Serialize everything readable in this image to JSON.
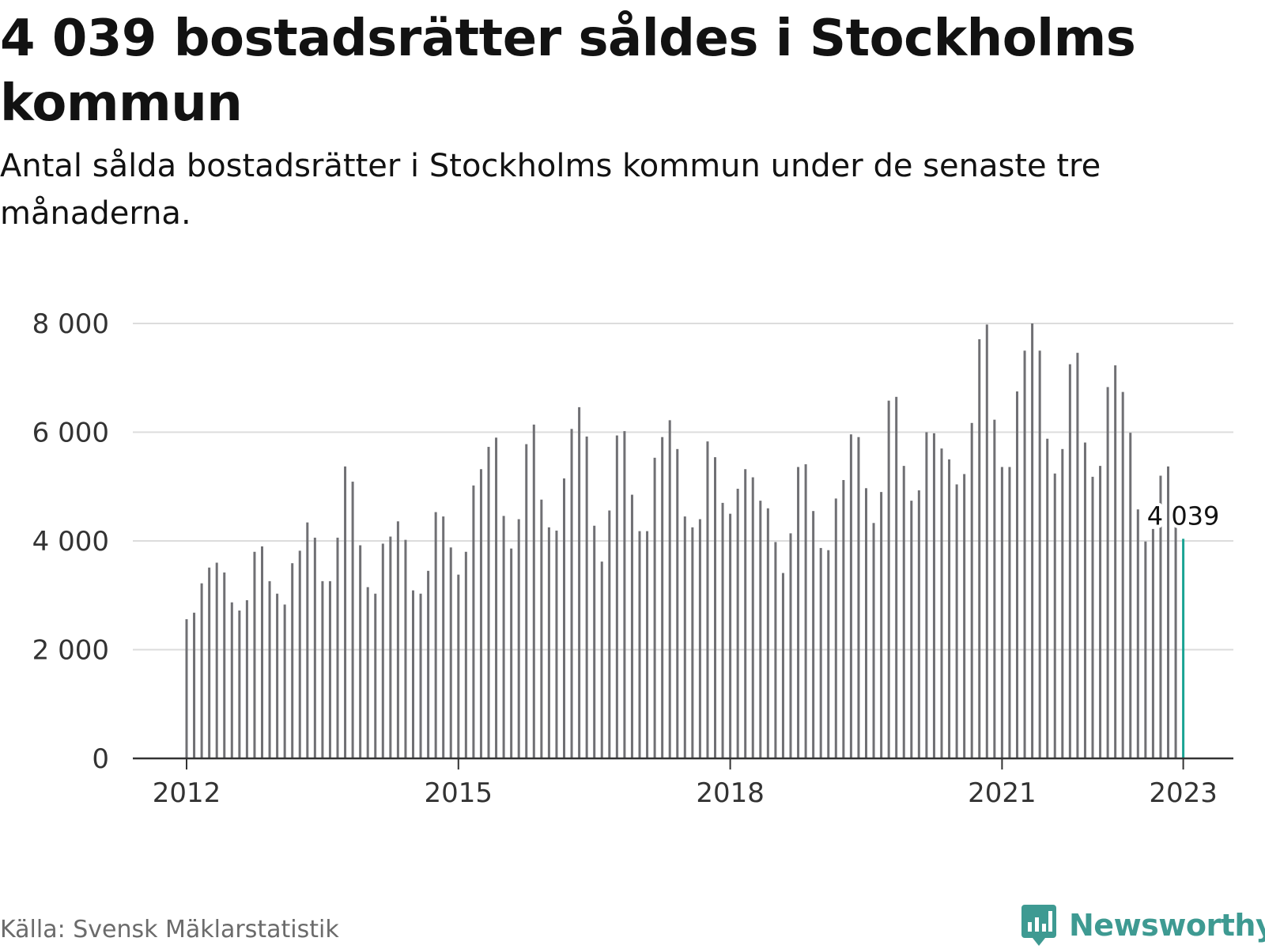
{
  "header": {
    "title": "4 039 bostadsrätter såldes i Stockholms kommun",
    "subtitle": "Antal sålda bostadsrätter i Stockholms kommun under de senaste tre månaderna."
  },
  "footer": {
    "source": "Källa: Svensk Mäklarstatistik",
    "brand": "Newsworthy"
  },
  "colors": {
    "bar": "#707074",
    "highlight": "#1aa393",
    "grid": "#dcdcdc",
    "axis": "#333333",
    "brand": "#3e9a92"
  },
  "chart_data": {
    "type": "bar",
    "title": "4 039 bostadsrätter såldes i Stockholms kommun",
    "subtitle": "Antal sålda bostadsrätter i Stockholms kommun under de senaste tre månaderna.",
    "xlabel": "",
    "ylabel": "",
    "ylim": [
      0,
      8000
    ],
    "yticks": [
      0,
      2000,
      4000,
      6000,
      8000
    ],
    "ytick_labels": [
      "0",
      "2 000",
      "4 000",
      "6 000",
      "8 000"
    ],
    "x_start": "2012-01",
    "xticks": [
      "2012",
      "2015",
      "2018",
      "2021",
      "2023"
    ],
    "grid": true,
    "annotation": {
      "label": "4 039",
      "value": 4039,
      "date": "2023-01"
    },
    "dates": [
      "2012-01",
      "2012-02",
      "2012-03",
      "2012-04",
      "2012-05",
      "2012-06",
      "2012-07",
      "2012-08",
      "2012-09",
      "2012-10",
      "2012-11",
      "2012-12",
      "2013-01",
      "2013-02",
      "2013-03",
      "2013-04",
      "2013-05",
      "2013-06",
      "2013-07",
      "2013-08",
      "2013-09",
      "2013-10",
      "2013-11",
      "2013-12",
      "2014-01",
      "2014-02",
      "2014-03",
      "2014-04",
      "2014-05",
      "2014-06",
      "2014-07",
      "2014-08",
      "2014-09",
      "2014-10",
      "2014-11",
      "2014-12",
      "2015-01",
      "2015-02",
      "2015-03",
      "2015-04",
      "2015-05",
      "2015-06",
      "2015-07",
      "2015-08",
      "2015-09",
      "2015-10",
      "2015-11",
      "2015-12",
      "2016-01",
      "2016-02",
      "2016-03",
      "2016-04",
      "2016-05",
      "2016-06",
      "2016-07",
      "2016-08",
      "2016-09",
      "2016-10",
      "2016-11",
      "2016-12",
      "2017-01",
      "2017-02",
      "2017-03",
      "2017-04",
      "2017-05",
      "2017-06",
      "2017-07",
      "2017-08",
      "2017-09",
      "2017-10",
      "2017-11",
      "2017-12",
      "2018-01",
      "2018-02",
      "2018-03",
      "2018-04",
      "2018-05",
      "2018-06",
      "2018-07",
      "2018-08",
      "2018-09",
      "2018-10",
      "2018-11",
      "2018-12",
      "2019-01",
      "2019-02",
      "2019-03",
      "2019-04",
      "2019-05",
      "2019-06",
      "2019-07",
      "2019-08",
      "2019-09",
      "2019-10",
      "2019-11",
      "2019-12",
      "2020-01",
      "2020-02",
      "2020-03",
      "2020-04",
      "2020-05",
      "2020-06",
      "2020-07",
      "2020-08",
      "2020-09",
      "2020-10",
      "2020-11",
      "2020-12",
      "2021-01",
      "2021-02",
      "2021-03",
      "2021-04",
      "2021-05",
      "2021-06",
      "2021-07",
      "2021-08",
      "2021-09",
      "2021-10",
      "2021-11",
      "2021-12",
      "2022-01",
      "2022-02",
      "2022-03",
      "2022-04",
      "2022-05",
      "2022-06",
      "2022-07",
      "2022-08",
      "2022-09",
      "2022-10",
      "2022-11",
      "2022-12",
      "2023-01"
    ],
    "values": [
      2560,
      2680,
      3220,
      3510,
      3600,
      3420,
      2870,
      2720,
      2910,
      3800,
      3900,
      3260,
      3030,
      2830,
      3590,
      3820,
      4340,
      4060,
      3260,
      3260,
      4060,
      5370,
      5090,
      3920,
      3150,
      3030,
      3950,
      4080,
      4360,
      4020,
      3090,
      3030,
      3450,
      4530,
      4450,
      3880,
      3380,
      3800,
      5020,
      5320,
      5730,
      5900,
      4460,
      3860,
      4400,
      5780,
      6140,
      4760,
      4250,
      4190,
      5150,
      6060,
      6460,
      5920,
      4280,
      3620,
      4560,
      5940,
      6020,
      4850,
      4180,
      4180,
      5530,
      5910,
      6220,
      5690,
      4450,
      4250,
      4400,
      5830,
      5540,
      4700,
      4500,
      4960,
      5320,
      5170,
      4740,
      4600,
      3980,
      3410,
      4140,
      5360,
      5410,
      4550,
      3870,
      3830,
      4780,
      5120,
      5960,
      5910,
      4970,
      4330,
      4900,
      6580,
      6650,
      5380,
      4740,
      4930,
      6000,
      5980,
      5700,
      5500,
      5040,
      5230,
      6170,
      7710,
      7980,
      6230,
      5360,
      5360,
      6750,
      7500,
      8000,
      7500,
      5880,
      5240,
      5690,
      7250,
      7460,
      5810,
      5180,
      5380,
      6830,
      7230,
      6740,
      5990,
      4580,
      3990,
      4220,
      5200,
      5370,
      4280,
      4039
    ]
  }
}
